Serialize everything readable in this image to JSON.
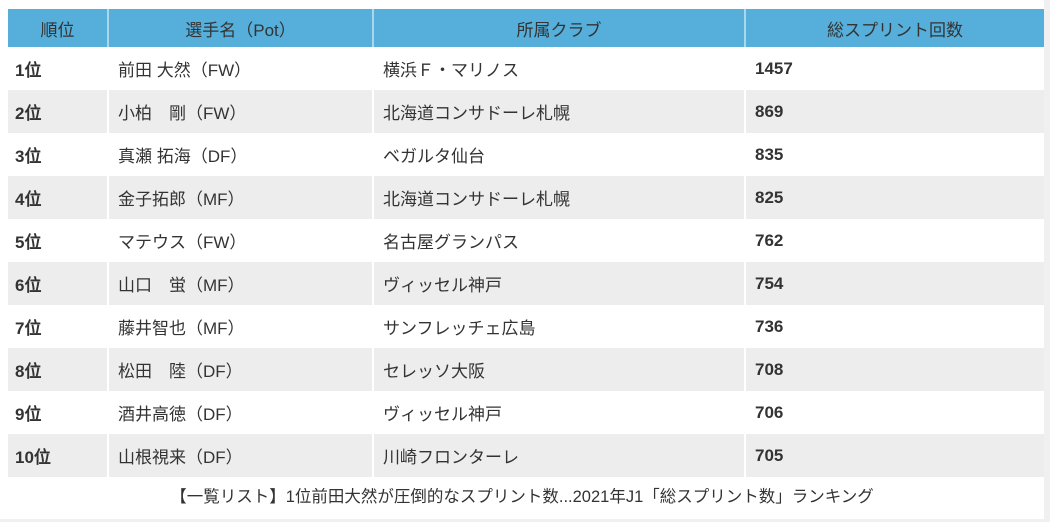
{
  "colors": {
    "header_bg": "#56aeda",
    "header_divider": "#8ac7e6",
    "row_alt_bg": "#ededed",
    "cell_divider": "#ffffff",
    "text": "#333333",
    "page_bg": "#f0f0f0",
    "card_bg": "#ffffff"
  },
  "table": {
    "headers": {
      "rank": "順位",
      "player": "選手名（Pot）",
      "club": "所属クラブ",
      "count": "総スプリント回数"
    },
    "rows": [
      {
        "rank": "1位",
        "player": "前田 大然（FW）",
        "club": "横浜Ｆ・マリノス",
        "sprints": "1457"
      },
      {
        "rank": "2位",
        "player": "小柏　剛（FW）",
        "club": "北海道コンサドーレ札幌",
        "sprints": "869"
      },
      {
        "rank": "3位",
        "player": "真瀬 拓海（DF）",
        "club": "ベガルタ仙台",
        "sprints": "835"
      },
      {
        "rank": "4位",
        "player": "金子拓郎（MF）",
        "club": "北海道コンサドーレ札幌",
        "sprints": "825"
      },
      {
        "rank": "5位",
        "player": "マテウス（FW）",
        "club": "名古屋グランパス",
        "sprints": "762"
      },
      {
        "rank": "6位",
        "player": "山口　蛍（MF）",
        "club": "ヴィッセル神戸",
        "sprints": "754"
      },
      {
        "rank": "7位",
        "player": "藤井智也（MF）",
        "club": "サンフレッチェ広島",
        "sprints": "736"
      },
      {
        "rank": "8位",
        "player": "松田　陸（DF）",
        "club": "セレッソ大阪",
        "sprints": "708"
      },
      {
        "rank": "9位",
        "player": "酒井高徳（DF）",
        "club": "ヴィッセル神戸",
        "sprints": "706"
      },
      {
        "rank": "10位",
        "player": "山根視来（DF）",
        "club": "川崎フロンターレ",
        "sprints": "705"
      }
    ]
  },
  "caption": "【一覧リスト】1位前田大然が圧倒的なスプリント数...2021年J1「総スプリント数」ランキング",
  "chart_data": {
    "type": "table",
    "title": "【一覧リスト】1位前田大然が圧倒的なスプリント数...2021年J1「総スプリント数」ランキング",
    "columns": [
      "順位",
      "選手名（Pot）",
      "所属クラブ",
      "総スプリント回数"
    ],
    "rows": [
      [
        "1位",
        "前田 大然（FW）",
        "横浜Ｆ・マリノス",
        1457
      ],
      [
        "2位",
        "小柏　剛（FW）",
        "北海道コンサドーレ札幌",
        869
      ],
      [
        "3位",
        "真瀬 拓海（DF）",
        "ベガルタ仙台",
        835
      ],
      [
        "4位",
        "金子拓郎（MF）",
        "北海道コンサドーレ札幌",
        825
      ],
      [
        "5位",
        "マテウス（FW）",
        "名古屋グランパス",
        762
      ],
      [
        "6位",
        "山口　蛍（MF）",
        "ヴィッセル神戸",
        754
      ],
      [
        "7位",
        "藤井智也（MF）",
        "サンフレッチェ広島",
        736
      ],
      [
        "8位",
        "松田　陸（DF）",
        "セレッソ大阪",
        708
      ],
      [
        "9位",
        "酒井高徳（DF）",
        "ヴィッセル神戸",
        706
      ],
      [
        "10位",
        "山根視来（DF）",
        "川崎フロンターレ",
        705
      ]
    ]
  }
}
